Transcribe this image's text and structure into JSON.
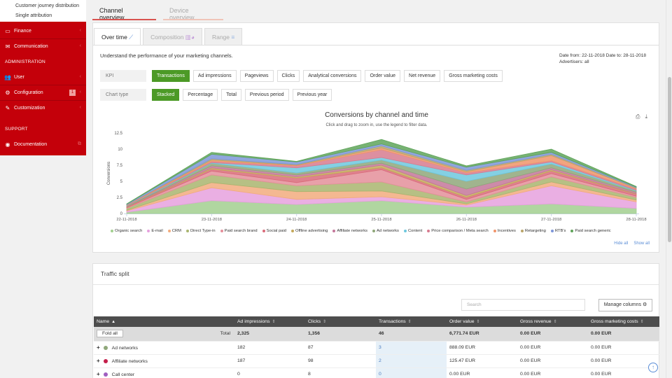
{
  "sidebar": {
    "top_links": [
      "Customer journey distribution",
      "Single attribution"
    ],
    "finance": "Finance",
    "communication": "Communication",
    "admin_header": "ADMINISTRATION",
    "user": "User",
    "configuration": "Configuration",
    "configuration_badge": "1",
    "customization": "Customization",
    "support_header": "SUPPORT",
    "documentation": "Documentation"
  },
  "top_tabs": {
    "channel": "Channel overview",
    "device": "Device overview"
  },
  "sub_tabs": {
    "over_time": "Over time",
    "composition": "Composition",
    "range": "Range"
  },
  "description": "Understand the performance of your marketing channels.",
  "date_info": {
    "line1": "Date from: 22-11-2018 Date to: 28-11-2018",
    "line2": "Advertisers: all"
  },
  "kpi": {
    "label": "KPI",
    "options": [
      "Transactions",
      "Ad impressions",
      "Pageviews",
      "Clicks",
      "Analytical conversions",
      "Order value",
      "Net revenue",
      "Gross marketing costs"
    ]
  },
  "chart_type": {
    "label": "Chart type",
    "options": [
      "Stacked",
      "Percentage",
      "Total",
      "Previous period",
      "Previous year"
    ]
  },
  "chart_data": {
    "type": "area",
    "title": "Conversions by channel and time",
    "subtitle": "Click and drag to zoom in, use the legend to filter data.",
    "ylabel": "Conversions",
    "xlabel": "",
    "x": [
      "22-11-2018",
      "23-11-2018",
      "24-11-2018",
      "25-11-2018",
      "26-11-2018",
      "27-11-2018",
      "28-11-2018"
    ],
    "yticks": [
      "0",
      "2.5",
      "5",
      "7.5",
      "10",
      "12.5"
    ],
    "ylim": [
      0,
      12.5
    ],
    "grid": false,
    "legend_position": "bottom",
    "series": [
      {
        "name": "Organic search",
        "color": "#a2cf8f",
        "values": [
          0.2,
          2.0,
          1.4,
          2.0,
          1.0,
          1.5,
          0.8
        ]
      },
      {
        "name": "E-mail",
        "color": "#e6a1de",
        "values": [
          0.2,
          2.0,
          0.8,
          0.6,
          0.3,
          2.8,
          1.0
        ]
      },
      {
        "name": "CRM",
        "color": "#f2ac7e",
        "values": [
          0.1,
          0.8,
          1.2,
          0.9,
          0.2,
          0.6,
          0.3
        ]
      },
      {
        "name": "Direct Type-in",
        "color": "#a9b56f",
        "values": [
          0.3,
          1.2,
          0.9,
          1.4,
          0.3,
          0.8,
          0.4
        ]
      },
      {
        "name": "Paid search brand",
        "color": "#e48f9a",
        "values": [
          0.1,
          0.6,
          0.5,
          1.9,
          0.4,
          0.5,
          0.2
        ]
      },
      {
        "name": "Social paid",
        "color": "#d96b7a",
        "values": [
          0.1,
          0.3,
          0.7,
          0.3,
          0.3,
          0.4,
          0.3
        ]
      },
      {
        "name": "Offline advertising",
        "color": "#c4a85a",
        "values": [
          0.05,
          0.2,
          0.2,
          0.4,
          0.3,
          0.2,
          0.1
        ]
      },
      {
        "name": "Affiliate networks",
        "color": "#c4779a",
        "values": [
          0.05,
          0.3,
          0.3,
          0.3,
          1.0,
          0.3,
          0.2
        ]
      },
      {
        "name": "Ad networks",
        "color": "#8fa77a",
        "values": [
          0.05,
          0.4,
          0.3,
          0.5,
          1.2,
          0.6,
          0.2
        ]
      },
      {
        "name": "Content",
        "color": "#6ec8de",
        "values": [
          0.05,
          0.1,
          0.8,
          0.4,
          1.0,
          0.3,
          0.1
        ]
      },
      {
        "name": "Price comparison / Meta search",
        "color": "#d77b8f",
        "values": [
          0.05,
          0.2,
          0.3,
          1.2,
          0.3,
          0.2,
          0.2
        ]
      },
      {
        "name": "Incentives",
        "color": "#f0946a",
        "values": [
          0.05,
          0.2,
          0.1,
          0.3,
          0.2,
          0.8,
          0.1
        ]
      },
      {
        "name": "Retargeting",
        "color": "#b9a56a",
        "values": [
          0.05,
          0.2,
          0.1,
          0.3,
          0.2,
          0.2,
          0.1
        ]
      },
      {
        "name": "RTB's",
        "color": "#7d96d8",
        "values": [
          0.1,
          0.7,
          0.4,
          0.3,
          0.5,
          0.3,
          0.1
        ]
      },
      {
        "name": "Paid search generic",
        "color": "#5fa45a",
        "values": [
          0.05,
          0.3,
          0.1,
          0.7,
          0.2,
          0.5,
          0.1
        ]
      }
    ]
  },
  "legend_links": {
    "hide_all": "Hide all",
    "show_all": "Show all"
  },
  "traffic_split": {
    "title": "Traffic split",
    "search_placeholder": "Search",
    "manage_columns": "Manage columns",
    "fold_all": "Fold all",
    "total_label": "Total",
    "columns": [
      "Name",
      "Ad impressions",
      "Clicks",
      "Transactions",
      "Order value",
      "Gross revenue",
      "Gross marketing costs"
    ],
    "total": [
      "2,325",
      "1,356",
      "46",
      "6,771.74 EUR",
      "0.00 EUR",
      "0.00 EUR"
    ],
    "rows": [
      {
        "name": "Ad networks",
        "color": "#8fa77a",
        "cells": [
          "182",
          "87",
          "3",
          "888.09 EUR",
          "0.00 EUR",
          "0.00 EUR"
        ]
      },
      {
        "name": "Affiliate networks",
        "color": "#c41e4a",
        "cells": [
          "187",
          "98",
          "2",
          "125.47 EUR",
          "0.00 EUR",
          "0.00 EUR"
        ]
      },
      {
        "name": "Call center",
        "color": "#a05fc0",
        "cells": [
          "0",
          "8",
          "0",
          "0.00 EUR",
          "0.00 EUR",
          "0.00 EUR"
        ]
      }
    ]
  }
}
